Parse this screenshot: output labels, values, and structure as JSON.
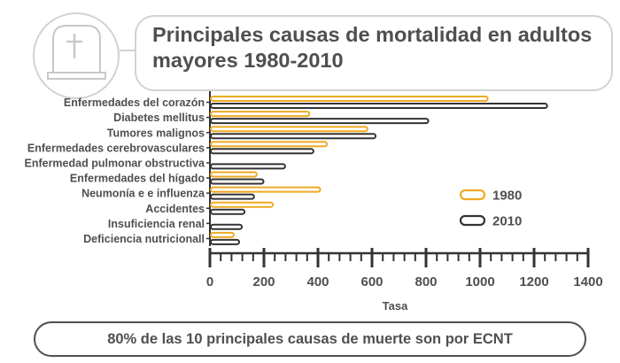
{
  "header": {
    "title": "Principales causas de mortalidad en adultos mayores 1980-2010",
    "icon": "tombstone-cross-icon"
  },
  "footer": {
    "text": "80% de las 10 principales causas de muerte son por ECNT"
  },
  "colors": {
    "series_1980": "#eeaa22",
    "series_2010": "#333333",
    "text": "#4f4f4f",
    "axis": "#333333",
    "frame": "#d2d2d2"
  },
  "chart_data": {
    "type": "bar",
    "orientation": "horizontal",
    "categories": [
      "Enfermedades del corazón",
      "Diabetes mellitus",
      "Tumores malignos",
      "Enfermedades cerebrovasculares",
      "Enfermedad pulmonar obstructiva",
      "Enfermedades del hígado",
      "Neumonía e  e influenza",
      "Accidentes",
      "Insuficiencia renal",
      "Deficiencia nutricionall"
    ],
    "series": [
      {
        "name": "1980",
        "values": [
          1025,
          365,
          580,
          430,
          0,
          170,
          405,
          230,
          0,
          85
        ]
      },
      {
        "name": "2010",
        "values": [
          1245,
          805,
          610,
          380,
          275,
          195,
          160,
          125,
          115,
          105
        ]
      }
    ],
    "xlabel": "Tasa",
    "xlim": [
      0,
      1400
    ],
    "xticks": [
      0,
      200,
      400,
      600,
      800,
      1000,
      1200,
      1400
    ],
    "legend_position": "right"
  }
}
